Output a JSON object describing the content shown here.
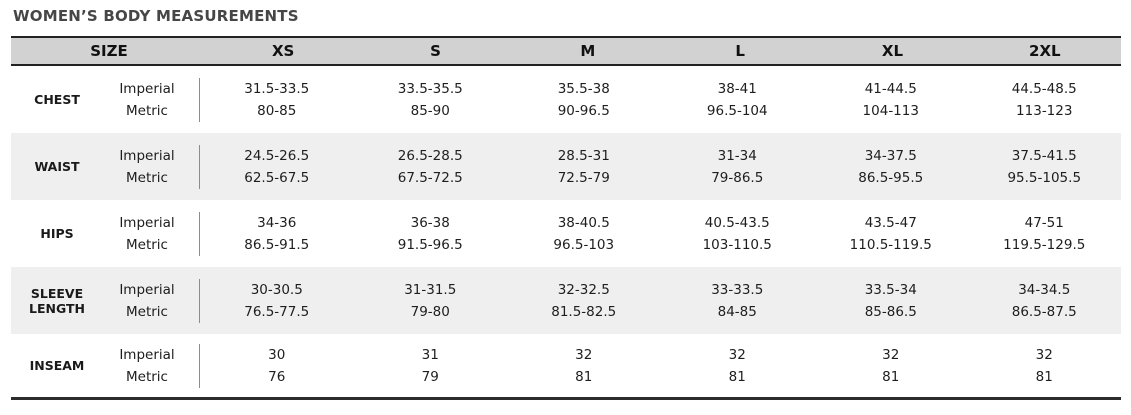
{
  "title": "WOMEN’S BODY MEASUREMENTS",
  "header": {
    "size_label": "SIZE",
    "sizes": [
      "XS",
      "S",
      "M",
      "L",
      "XL",
      "2XL"
    ]
  },
  "units": {
    "imperial": "Imperial",
    "metric": "Metric"
  },
  "rows": [
    {
      "label": "CHEST",
      "imperial": [
        "31.5-33.5",
        "33.5-35.5",
        "35.5-38",
        "38-41",
        "41-44.5",
        "44.5-48.5"
      ],
      "metric": [
        "80-85",
        "85-90",
        "90-96.5",
        "96.5-104",
        "104-113",
        "113-123"
      ]
    },
    {
      "label": "WAIST",
      "imperial": [
        "24.5-26.5",
        "26.5-28.5",
        "28.5-31",
        "31-34",
        "34-37.5",
        "37.5-41.5"
      ],
      "metric": [
        "62.5-67.5",
        "67.5-72.5",
        "72.5-79",
        "79-86.5",
        "86.5-95.5",
        "95.5-105.5"
      ]
    },
    {
      "label": "HIPS",
      "imperial": [
        "34-36",
        "36-38",
        "38-40.5",
        "40.5-43.5",
        "43.5-47",
        "47-51"
      ],
      "metric": [
        "86.5-91.5",
        "91.5-96.5",
        "96.5-103",
        "103-110.5",
        "110.5-119.5",
        "119.5-129.5"
      ]
    },
    {
      "label": "SLEEVE LENGTH",
      "imperial": [
        "30-30.5",
        "31-31.5",
        "32-32.5",
        "33-33.5",
        "33.5-34",
        "34-34.5"
      ],
      "metric": [
        "76.5-77.5",
        "79-80",
        "81.5-82.5",
        "84-85",
        "85-86.5",
        "86.5-87.5"
      ]
    },
    {
      "label": "INSEAM",
      "imperial": [
        "30",
        "31",
        "32",
        "32",
        "32",
        "32"
      ],
      "metric": [
        "76",
        "79",
        "81",
        "81",
        "81",
        "81"
      ]
    }
  ],
  "colors": {
    "header_bg": "#d2d2d2",
    "row_alt_bg": "#efefef",
    "border_dark": "#222222",
    "divider": "#8c8c8c",
    "title_text": "#464646"
  }
}
